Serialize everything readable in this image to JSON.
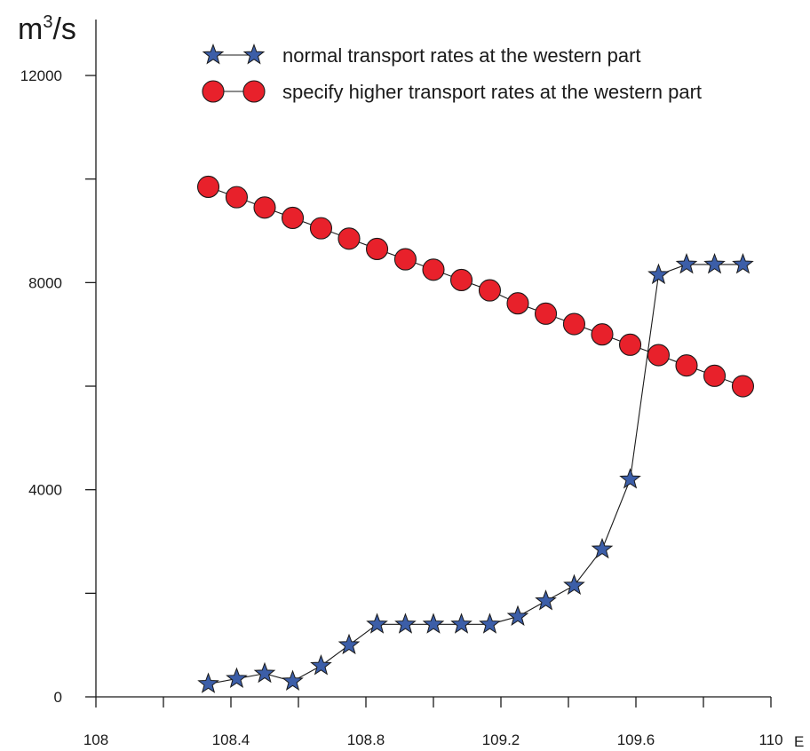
{
  "chart_data": {
    "type": "line",
    "title": "",
    "xlabel": "E",
    "ylabel": "m3/s",
    "ylabel_parts": {
      "base": "m",
      "sup": "3",
      "tail": "/s"
    },
    "xlim": [
      108,
      110
    ],
    "ylim": [
      0,
      12000
    ],
    "x_ticks_major": [
      108,
      108.4,
      108.8,
      109.2,
      109.6,
      110
    ],
    "x_ticks_minor": [
      108.2,
      108.6,
      109.0,
      109.4,
      109.8
    ],
    "x_tick_labels": [
      "108",
      "108.4",
      "108.8",
      "109.2",
      "109.6",
      "110"
    ],
    "y_ticks_major": [
      0,
      4000,
      8000,
      12000
    ],
    "y_ticks_minor": [
      2000,
      6000,
      10000
    ],
    "y_tick_labels": [
      "0",
      "4000",
      "8000",
      "12000"
    ],
    "grid": false,
    "legend_position": "top-right",
    "x": [
      108.333,
      108.417,
      108.5,
      108.583,
      108.667,
      108.75,
      108.833,
      108.917,
      109.0,
      109.083,
      109.167,
      109.25,
      109.333,
      109.417,
      109.5,
      109.583,
      109.667,
      109.75,
      109.833,
      109.917
    ],
    "series": [
      {
        "name": "normal transport rates at the western part",
        "marker": "star",
        "color": "#3c5ea8",
        "values": [
          250,
          350,
          450,
          300,
          600,
          1000,
          1400,
          1400,
          1400,
          1400,
          1400,
          1550,
          1850,
          2150,
          2850,
          4200,
          8150,
          8350,
          8350,
          8350
        ]
      },
      {
        "name": "specify higher transport rates at the western part",
        "marker": "circle",
        "color": "#e8212b",
        "values": [
          9850,
          9650,
          9450,
          9250,
          9050,
          8850,
          8650,
          8450,
          8250,
          8050,
          7850,
          7600,
          7400,
          7200,
          7000,
          6800,
          6600,
          6400,
          6200,
          6000
        ]
      }
    ]
  }
}
